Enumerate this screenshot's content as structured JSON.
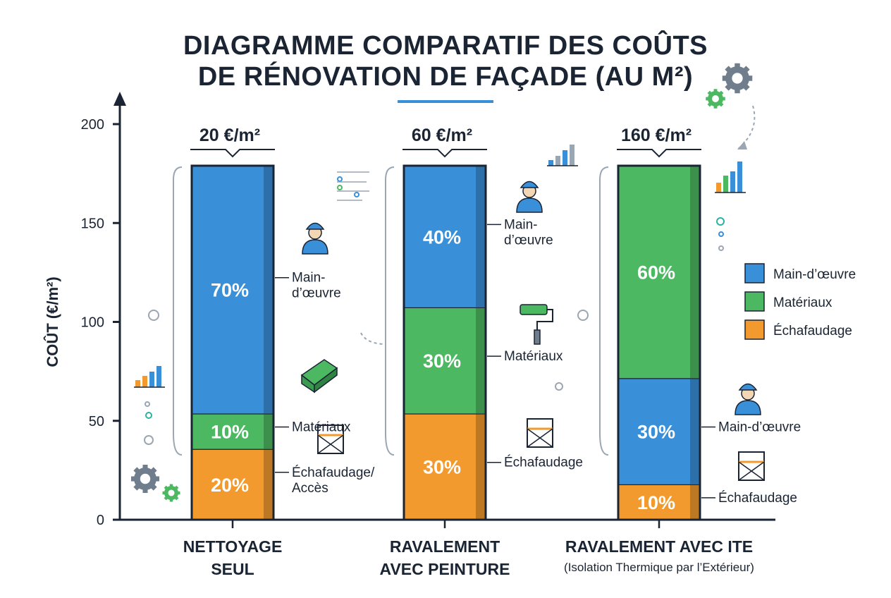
{
  "title_line1": "DIAGRAMME COMPARATIF DES COÛTS",
  "title_line2": "DE RÉNOVATION DE FAÇADE (AU M²)",
  "colors": {
    "main_oeuvre": "#3a8fd9",
    "materiaux": "#4db862",
    "echafaudage": "#f29a2e",
    "ink": "#1a2433"
  },
  "chart_data": {
    "type": "bar",
    "stacked": true,
    "title": "DIAGRAMME COMPARATIF DES COÛTS DE RÉNOVATION DE FAÇADE (AU M²)",
    "ylabel": "COÛT (€/m²)",
    "ylim": [
      0,
      200
    ],
    "yticks": [
      0,
      50,
      100,
      150,
      200
    ],
    "grid": false,
    "legend_position": "right",
    "legend": [
      {
        "key": "main_oeuvre",
        "label": "Main-d’œuvre"
      },
      {
        "key": "materiaux",
        "label": "Matériaux"
      },
      {
        "key": "echafaudage",
        "label": "Échafaudage"
      }
    ],
    "categories": [
      {
        "label_lines": [
          "NETTOYAGE",
          "SEUL"
        ],
        "subtitle": "",
        "total": 20,
        "total_label": "20 €/m²",
        "segments": [
          {
            "key": "echafaudage",
            "percent": 20,
            "label": "20%",
            "callout": [
              "Échafaudage/",
              "Accès"
            ]
          },
          {
            "key": "materiaux",
            "percent": 10,
            "label": "10%",
            "callout": [
              "Matériaux"
            ]
          },
          {
            "key": "main_oeuvre",
            "percent": 70,
            "label": "70%",
            "callout": [
              "Main-",
              "d’œuvre"
            ]
          }
        ]
      },
      {
        "label_lines": [
          "RAVALEMENT",
          "AVEC PEINTURE"
        ],
        "subtitle": "",
        "total": 60,
        "total_label": "60 €/m²",
        "segments": [
          {
            "key": "echafaudage",
            "percent": 30,
            "label": "30%",
            "callout": [
              "Échafaudage"
            ]
          },
          {
            "key": "materiaux",
            "percent": 30,
            "label": "30%",
            "callout": [
              "Matériaux"
            ]
          },
          {
            "key": "main_oeuvre",
            "percent": 40,
            "label": "40%",
            "callout": [
              "Main-",
              "d’œuvre"
            ]
          }
        ]
      },
      {
        "label_lines": [
          "RAVALEMENT AVEC ITE"
        ],
        "subtitle": "(Isolation Thermique par l’Extérieur)",
        "total": 160,
        "total_label": "160 €/m²",
        "segments": [
          {
            "key": "echafaudage",
            "percent": 10,
            "label": "10%",
            "callout": [
              "Échafaudage"
            ]
          },
          {
            "key": "main_oeuvre",
            "percent": 30,
            "label": "30%",
            "callout": [
              "Main-d’œuvre"
            ]
          },
          {
            "key": "materiaux",
            "percent": 60,
            "label": "60%",
            "callout": []
          }
        ]
      }
    ]
  },
  "icons": [
    "worker-icon",
    "gear-icon",
    "building-materials-icon",
    "scaffold-icon",
    "paint-roller-icon",
    "insulation-panel-icon",
    "mini-bar-chart-icon",
    "dotted-arrow-icon"
  ]
}
